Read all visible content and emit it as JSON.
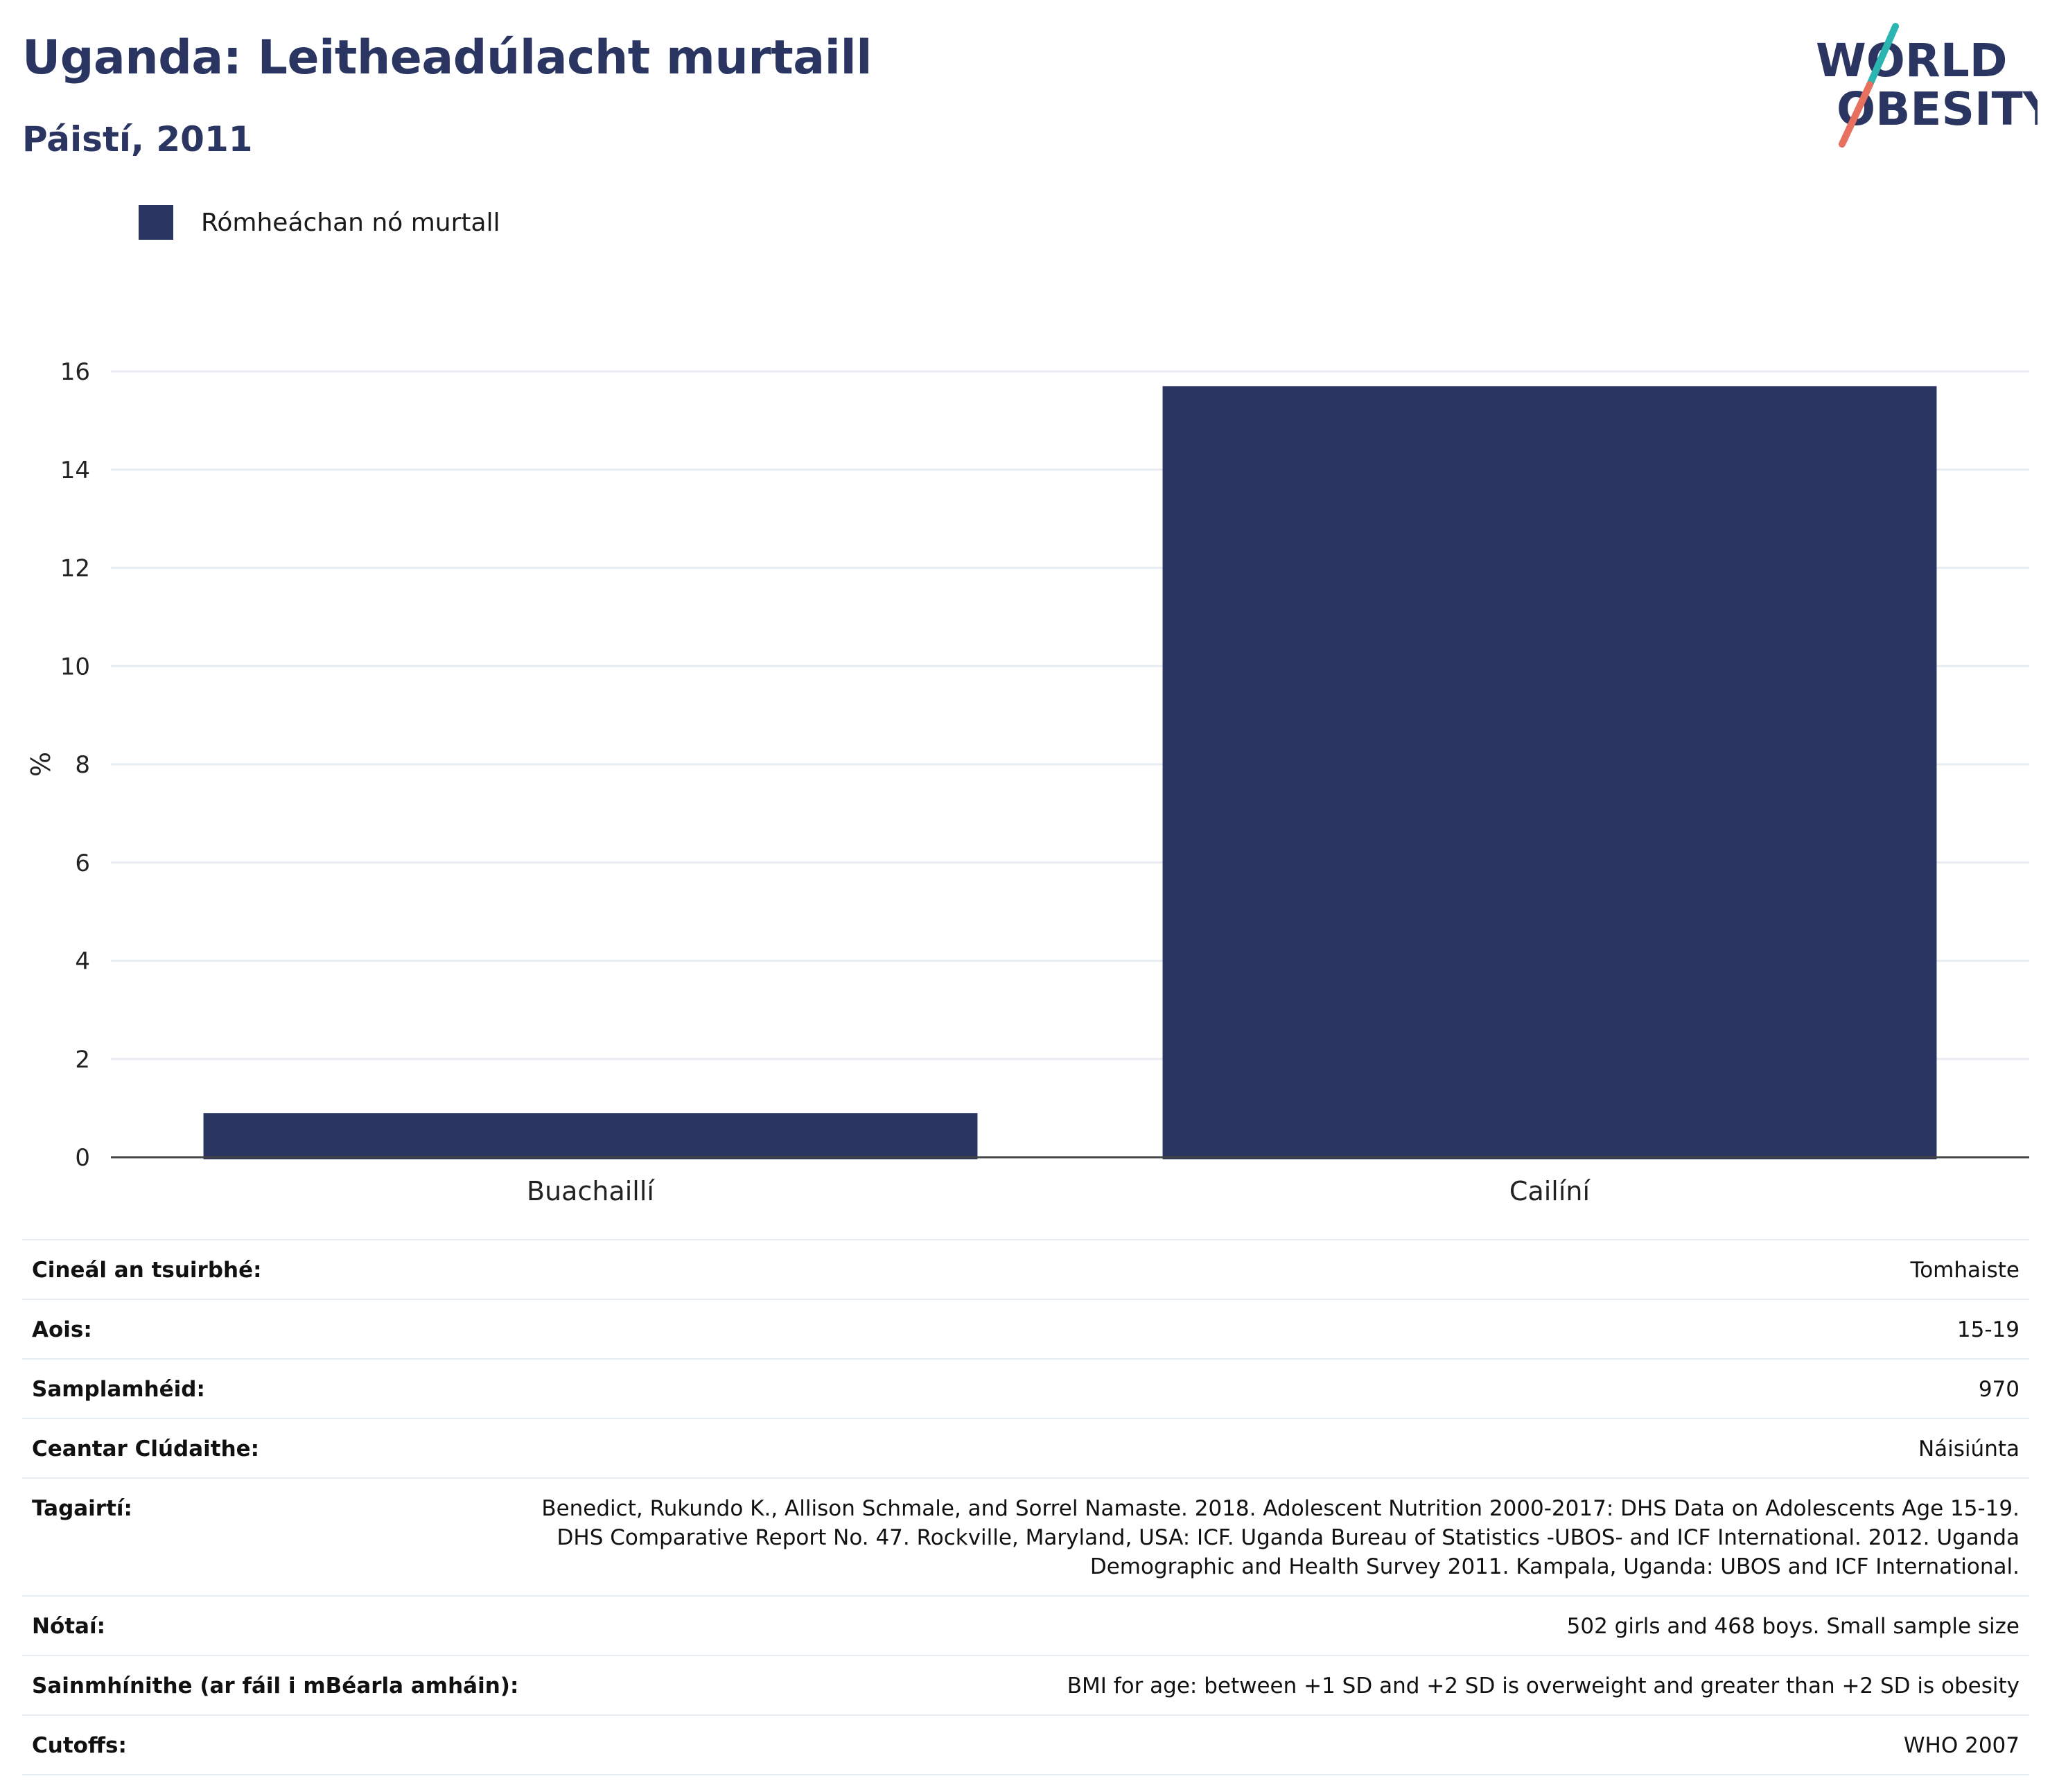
{
  "header": {
    "title": "Uganda: Leitheadúlacht murtaill",
    "subtitle": "Páistí, 2011"
  },
  "logo": {
    "line1": "WORLD",
    "line2": "OBESITY",
    "colors": {
      "text": "#2a3561",
      "slash_top": "#2ab5b0",
      "slash_bottom": "#e8705f"
    }
  },
  "legend": {
    "label": "Rómheáchan nó murtall"
  },
  "chart_data": {
    "type": "bar",
    "categories": [
      "Buachaillí",
      "Cailíní"
    ],
    "series": [
      {
        "name": "Rómheáchan nó murtall",
        "values": [
          0.9,
          15.7
        ],
        "color": "#2a3561"
      }
    ],
    "ylabel": "%",
    "xlabel": "",
    "ylim": [
      0,
      16
    ],
    "yticks": [
      0,
      2,
      4,
      6,
      8,
      10,
      12,
      14,
      16
    ],
    "grid": true,
    "legend_position": "top-left"
  },
  "metadata": [
    {
      "key": "Cineál an tsuirbhé:",
      "value": "Tomhaiste"
    },
    {
      "key": "Aois:",
      "value": "15-19"
    },
    {
      "key": "Samplamhéid:",
      "value": "970"
    },
    {
      "key": "Ceantar Clúdaithe:",
      "value": "Náisiúnta"
    },
    {
      "key": "Tagairtí:",
      "value": "Benedict, Rukundo K., Allison Schmale, and Sorrel Namaste. 2018. Adolescent Nutrition 2000-2017: DHS Data on Adolescents Age 15-19. DHS Comparative Report No. 47. Rockville, Maryland, USA: ICF. Uganda Bureau of Statistics -UBOS- and ICF International. 2012. Uganda Demographic and Health Survey 2011. Kampala, Uganda: UBOS and ICF International."
    },
    {
      "key": "Nótaí:",
      "value": "502 girls and 468 boys. Small sample size"
    },
    {
      "key": "Sainmhínithe (ar fáil i mBéarla amháin):",
      "value": "BMI for age: between +1 SD and +2 SD is overweight and greater than +2 SD is obesity"
    },
    {
      "key": "Cutoffs:",
      "value": "WHO 2007"
    }
  ]
}
